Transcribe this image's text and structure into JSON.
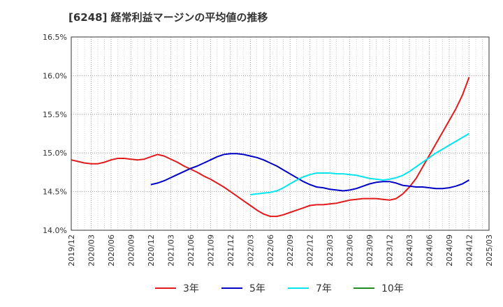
{
  "chart_data": {
    "type": "line",
    "title": "[6248]  経常利益マージンの平均値の推移",
    "xlabel": "",
    "ylabel": "",
    "ylim": [
      14.0,
      16.5
    ],
    "grid": true,
    "legend_placement": "bottom",
    "x_ticks": [
      "2019/12",
      "2020/03",
      "2020/06",
      "2020/09",
      "2020/12",
      "2021/03",
      "2021/06",
      "2021/09",
      "2021/12",
      "2022/03",
      "2022/06",
      "2022/09",
      "2022/12",
      "2023/03",
      "2023/06",
      "2023/09",
      "2023/12",
      "2024/03",
      "2024/06",
      "2024/09",
      "2024/12",
      "2025/03"
    ],
    "y_ticks": [
      "14.0%",
      "14.5%",
      "15.0%",
      "15.5%",
      "16.0%",
      "16.5%"
    ],
    "y_tick_values": [
      14.0,
      14.5,
      15.0,
      15.5,
      16.0,
      16.5
    ],
    "series": [
      {
        "name": "3年",
        "color": "#e31a1c",
        "x": [
          "2019/12",
          "2020/01",
          "2020/02",
          "2020/03",
          "2020/04",
          "2020/05",
          "2020/06",
          "2020/07",
          "2020/08",
          "2020/09",
          "2020/10",
          "2020/11",
          "2020/12",
          "2021/01",
          "2021/02",
          "2021/03",
          "2021/04",
          "2021/05",
          "2021/06",
          "2021/07",
          "2021/08",
          "2021/09",
          "2021/10",
          "2021/11",
          "2021/12",
          "2022/01",
          "2022/02",
          "2022/03",
          "2022/04",
          "2022/05",
          "2022/06",
          "2022/07",
          "2022/08",
          "2022/09",
          "2022/10",
          "2022/11",
          "2022/12",
          "2023/01",
          "2023/02",
          "2023/03",
          "2023/04",
          "2023/05",
          "2023/06",
          "2023/07",
          "2023/08",
          "2023/09",
          "2023/10",
          "2023/11",
          "2023/12",
          "2024/01",
          "2024/02",
          "2024/03",
          "2024/04",
          "2024/05",
          "2024/06",
          "2024/07",
          "2024/08",
          "2024/09",
          "2024/10",
          "2024/11",
          "2024/12"
        ],
        "values": [
          14.91,
          14.89,
          14.87,
          14.86,
          14.86,
          14.88,
          14.91,
          14.93,
          14.93,
          14.92,
          14.91,
          14.92,
          14.95,
          14.98,
          14.96,
          14.92,
          14.88,
          14.83,
          14.79,
          14.75,
          14.7,
          14.66,
          14.61,
          14.56,
          14.5,
          14.44,
          14.38,
          14.32,
          14.26,
          14.21,
          14.18,
          14.18,
          14.2,
          14.23,
          14.26,
          14.29,
          14.32,
          14.33,
          14.33,
          14.34,
          14.35,
          14.37,
          14.39,
          14.4,
          14.41,
          14.41,
          14.41,
          14.4,
          14.39,
          14.41,
          14.47,
          14.56,
          14.67,
          14.82,
          14.97,
          15.12,
          15.27,
          15.42,
          15.57,
          15.75,
          15.98
        ]
      },
      {
        "name": "5年",
        "color": "#0000c8",
        "x": [
          "2020/12",
          "2021/01",
          "2021/02",
          "2021/03",
          "2021/04",
          "2021/05",
          "2021/06",
          "2021/07",
          "2021/08",
          "2021/09",
          "2021/10",
          "2021/11",
          "2021/12",
          "2022/01",
          "2022/02",
          "2022/03",
          "2022/04",
          "2022/05",
          "2022/06",
          "2022/07",
          "2022/08",
          "2022/09",
          "2022/10",
          "2022/11",
          "2022/12",
          "2023/01",
          "2023/02",
          "2023/03",
          "2023/04",
          "2023/05",
          "2023/06",
          "2023/07",
          "2023/08",
          "2023/09",
          "2023/10",
          "2023/11",
          "2023/12",
          "2024/01",
          "2024/02",
          "2024/03",
          "2024/04",
          "2024/05",
          "2024/06",
          "2024/07",
          "2024/08",
          "2024/09",
          "2024/10",
          "2024/11",
          "2024/12"
        ],
        "values": [
          14.59,
          14.61,
          14.64,
          14.68,
          14.72,
          14.76,
          14.8,
          14.83,
          14.87,
          14.91,
          14.95,
          14.98,
          14.99,
          14.99,
          14.98,
          14.96,
          14.94,
          14.91,
          14.87,
          14.83,
          14.78,
          14.73,
          14.68,
          14.63,
          14.59,
          14.56,
          14.55,
          14.53,
          14.52,
          14.51,
          14.52,
          14.54,
          14.57,
          14.6,
          14.62,
          14.63,
          14.63,
          14.61,
          14.58,
          14.57,
          14.56,
          14.56,
          14.55,
          14.54,
          14.54,
          14.55,
          14.57,
          14.6,
          14.65
        ]
      },
      {
        "name": "7年",
        "color": "#00e5ee",
        "x": [
          "2022/03",
          "2022/04",
          "2022/05",
          "2022/06",
          "2022/07",
          "2022/08",
          "2022/09",
          "2022/10",
          "2022/11",
          "2022/12",
          "2023/01",
          "2023/02",
          "2023/03",
          "2023/04",
          "2023/05",
          "2023/06",
          "2023/07",
          "2023/08",
          "2023/09",
          "2023/10",
          "2023/11",
          "2023/12",
          "2024/01",
          "2024/02",
          "2024/03",
          "2024/04",
          "2024/05",
          "2024/06",
          "2024/07",
          "2024/08",
          "2024/09",
          "2024/10",
          "2024/11",
          "2024/12"
        ],
        "values": [
          14.46,
          14.47,
          14.48,
          14.49,
          14.51,
          14.55,
          14.6,
          14.65,
          14.69,
          14.72,
          14.74,
          14.74,
          14.74,
          14.73,
          14.73,
          14.72,
          14.71,
          14.69,
          14.67,
          14.66,
          14.65,
          14.66,
          14.68,
          14.71,
          14.76,
          14.82,
          14.88,
          14.94,
          15.0,
          15.05,
          15.1,
          15.15,
          15.2,
          15.25
        ]
      },
      {
        "name": "10年",
        "color": "#228b22",
        "x": [],
        "values": []
      }
    ]
  }
}
